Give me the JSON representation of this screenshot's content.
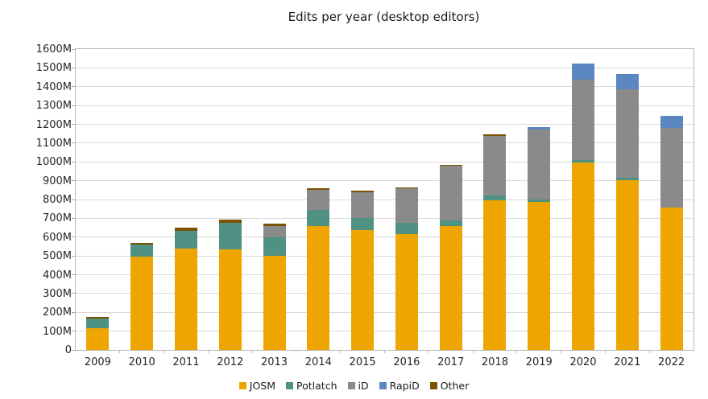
{
  "chart_data": {
    "type": "bar",
    "stacked": true,
    "title": "Edits per year (desktop editors)",
    "xlabel": "",
    "ylabel": "",
    "ylim": [
      0,
      1600
    ],
    "ytick_step": 100,
    "ytick_suffix": "M",
    "grid": true,
    "legend_position": "bottom",
    "categories": [
      "2009",
      "2010",
      "2011",
      "2012",
      "2013",
      "2014",
      "2015",
      "2016",
      "2017",
      "2018",
      "2019",
      "2020",
      "2021",
      "2022"
    ],
    "series": [
      {
        "name": "JOSM",
        "color": "#eea500",
        "values": [
          115,
          497,
          537,
          536,
          500,
          659,
          637,
          617,
          660,
          794,
          787,
          995,
          903,
          758
        ]
      },
      {
        "name": "Potlatch",
        "color": "#4f9183",
        "values": [
          50,
          63,
          98,
          140,
          100,
          86,
          64,
          57,
          29,
          28,
          14,
          14,
          14,
          0
        ]
      },
      {
        "name": "iD",
        "color": "#8a8a8a",
        "values": [
          0,
          0,
          0,
          0,
          60,
          107,
          138,
          185,
          289,
          314,
          371,
          428,
          471,
          421
        ]
      },
      {
        "name": "RapiD",
        "color": "#5b87c0",
        "values": [
          0,
          0,
          0,
          0,
          0,
          0,
          0,
          0,
          0,
          0,
          14,
          86,
          79,
          64
        ]
      },
      {
        "name": "Other",
        "color": "#7a5200",
        "values": [
          12,
          10,
          15,
          17,
          10,
          6,
          7,
          4,
          6,
          10,
          0,
          0,
          0,
          0
        ]
      }
    ],
    "totals": [
      177,
      570,
      650,
      693,
      670,
      858,
      846,
      863,
      984,
      1146,
      1186,
      1523,
      1467,
      1243
    ]
  }
}
